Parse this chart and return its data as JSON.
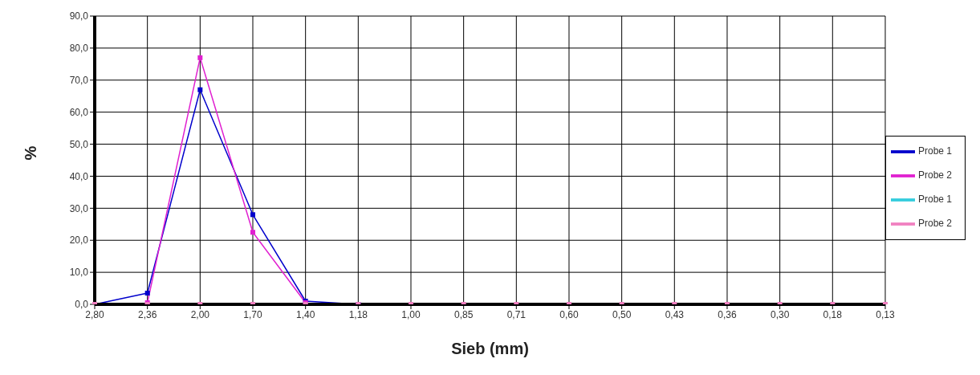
{
  "chart_data": {
    "type": "line",
    "xlabel": "Sieb (mm)",
    "ylabel": "%",
    "categories": [
      "2,80",
      "2,36",
      "2,00",
      "1,70",
      "1,40",
      "1,18",
      "1,00",
      "0,85",
      "0,71",
      "0,60",
      "0,50",
      "0,43",
      "0,36",
      "0,30",
      "0,18",
      "0,13"
    ],
    "series": [
      {
        "name": "Probe 1",
        "color": "#0000cc",
        "values": [
          0,
          3.5,
          67,
          28,
          1,
          0,
          null,
          null,
          null,
          null,
          null,
          null,
          null,
          null,
          null,
          null
        ]
      },
      {
        "name": "Probe 2",
        "color": "#e020d0",
        "values": [
          null,
          0.5,
          77,
          22.5,
          0.5,
          null,
          null,
          null,
          null,
          null,
          null,
          null,
          null,
          null,
          null,
          null
        ]
      },
      {
        "name": "Probe 1",
        "color": "#33ccdd",
        "values": [
          null,
          null,
          null,
          null,
          null,
          null,
          null,
          null,
          null,
          null,
          null,
          null,
          null,
          null,
          null,
          null
        ]
      },
      {
        "name": "Probe 2",
        "color": "#f080c0",
        "values": [
          0,
          0,
          0,
          0,
          0,
          0,
          0,
          0,
          0,
          0,
          0,
          0,
          0,
          0,
          0,
          0
        ]
      }
    ],
    "ylim": [
      0,
      90
    ],
    "yticks": [
      {
        "value": 0,
        "label": "0,0"
      },
      {
        "value": 10,
        "label": "10,0"
      },
      {
        "value": 20,
        "label": "20,0"
      },
      {
        "value": 30,
        "label": "30,0"
      },
      {
        "value": 40,
        "label": "40,0"
      },
      {
        "value": 50,
        "label": "50,0"
      },
      {
        "value": 60,
        "label": "60,0"
      },
      {
        "value": 70,
        "label": "70,0"
      },
      {
        "value": 80,
        "label": "80,0"
      },
      {
        "value": 90,
        "label": "90,0"
      }
    ],
    "grid": true,
    "legend": "right",
    "marker": "square",
    "line_style": "solid"
  }
}
